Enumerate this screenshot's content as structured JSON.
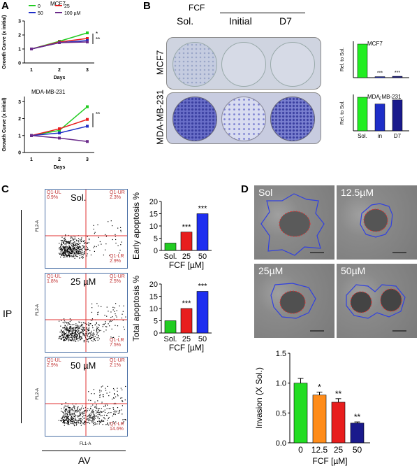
{
  "panels": {
    "A": "A",
    "B": "B",
    "C": "C",
    "D": "D"
  },
  "growth": {
    "legend": [
      {
        "label": "0",
        "color": "#22cc22"
      },
      {
        "label": "25",
        "color": "#e81e1e"
      },
      {
        "label": "50",
        "color": "#1e2ec8"
      },
      {
        "label": "100 µM",
        "color": "#6a2a8a"
      }
    ],
    "ylabel": "Growth Curve (x initial)",
    "xlabel": "Days",
    "ticks_x": [
      "1",
      "2",
      "3"
    ],
    "mcf7": {
      "title": "MCF7",
      "yticks": [
        "0",
        "1",
        "2",
        "3"
      ],
      "ylim": [
        0,
        3
      ],
      "series": [
        {
          "name": "0",
          "color": "#22cc22",
          "values": [
            1.0,
            1.55,
            2.15
          ]
        },
        {
          "name": "25",
          "color": "#e81e1e",
          "values": [
            1.0,
            1.5,
            1.75
          ]
        },
        {
          "name": "50",
          "color": "#1e2ec8",
          "values": [
            1.0,
            1.45,
            1.6
          ]
        },
        {
          "name": "100 µM",
          "color": "#6a2a8a",
          "values": [
            1.0,
            1.45,
            1.5
          ]
        }
      ],
      "sig": [
        "*",
        "**"
      ]
    },
    "mda": {
      "title": "MDA-MB-231",
      "yticks": [
        "0",
        "1",
        "2",
        "3"
      ],
      "ylim": [
        0,
        3.3
      ],
      "series": [
        {
          "name": "0",
          "color": "#22cc22",
          "values": [
            1.0,
            1.3,
            2.7
          ]
        },
        {
          "name": "25",
          "color": "#e81e1e",
          "values": [
            1.0,
            1.4,
            1.95
          ]
        },
        {
          "name": "50",
          "color": "#1e2ec8",
          "values": [
            1.0,
            1.15,
            1.55
          ]
        },
        {
          "name": "100 µM",
          "color": "#6a2a8a",
          "values": [
            1.0,
            0.85,
            0.65
          ]
        }
      ],
      "sig": [
        "**"
      ]
    }
  },
  "colony": {
    "fcf_label": "FCF",
    "col_labels": [
      "Sol.",
      "Initial",
      "D7"
    ],
    "row_labels": [
      "MCF7",
      "MDA-MB-231"
    ],
    "bar_ylabel": "Rel. to Sol.",
    "bar_cats": [
      "Sol.",
      "in",
      "D7"
    ],
    "mcf7_bars": {
      "title": "MCF7",
      "values": [
        1.0,
        0.03,
        0.04
      ],
      "sig": [
        "",
        "***",
        "***"
      ]
    },
    "mda_bars": {
      "title": "MDA-MB-231",
      "values": [
        1.0,
        0.8,
        0.92
      ],
      "sig": [
        "",
        "*",
        ""
      ]
    },
    "colors": [
      "#22ee22",
      "#1e2ec8",
      "#1a1a8c"
    ]
  },
  "flow": {
    "x_axis": "FL1-A",
    "y_axis": "FL2-A",
    "outer_x": "AV",
    "outer_y": "IP",
    "plots": [
      {
        "label": "Sol.",
        "ul": "Q1-UL\n0.9%",
        "ur": "Q1-UR\n2.3%",
        "lr": "Q1-LR\n2.9%"
      },
      {
        "label": "25 µM",
        "ul": "Q1-UL\n1.8%",
        "ur": "Q1-UR\n2.5%",
        "lr": "Q1-LR\n7.5%"
      },
      {
        "label": "50 µM",
        "ul": "Q1-UL\n2.9%",
        "ur": "Q1-UR\n2.1%",
        "lr": "Q1-LR\n14.6%"
      }
    ]
  },
  "apoptosis": {
    "early": {
      "ylabel": "Early apoptosis %",
      "yticks": [
        "0",
        "5",
        "10",
        "15",
        "20"
      ],
      "ylim": [
        0,
        20
      ],
      "values": [
        3,
        7.5,
        15
      ],
      "sig": [
        "",
        "***",
        "***"
      ]
    },
    "total": {
      "ylabel": "Total apoptosis %",
      "yticks": [
        "0",
        "5",
        "10",
        "15",
        "20"
      ],
      "ylim": [
        0,
        20
      ],
      "values": [
        5,
        10,
        17
      ],
      "sig": [
        "",
        "***",
        "***"
      ]
    },
    "cats": [
      "Sol.",
      "25",
      "50"
    ],
    "xlabel": "FCF [µM]",
    "colors": [
      "#22cc22",
      "#e81e1e",
      "#1e2ef0"
    ]
  },
  "invasion": {
    "images": [
      "Sol",
      "12.5µM",
      "25µM",
      "50µM"
    ],
    "chart_data": {
      "type": "bar",
      "categories": [
        "0",
        "12.5",
        "25",
        "50"
      ],
      "values": [
        1.0,
        0.8,
        0.68,
        0.33
      ],
      "errors": [
        0.08,
        0.05,
        0.06,
        0.02
      ],
      "sig": [
        "",
        "*",
        "**",
        "**"
      ],
      "ylabel": "Invasion (X Sol.)",
      "xlabel": "FCF [µM]",
      "yticks": [
        "0.0",
        "0.5",
        "1.0",
        "1.5"
      ],
      "ylim": [
        0,
        1.5
      ],
      "colors": [
        "#22dd22",
        "#ff8c1a",
        "#e81e1e",
        "#1a1a8c"
      ]
    }
  }
}
